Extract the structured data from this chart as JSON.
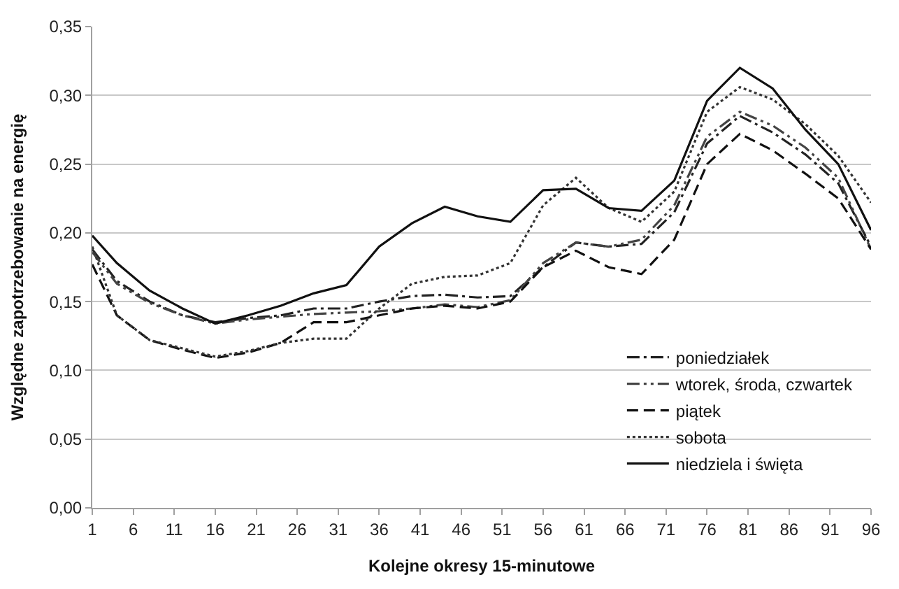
{
  "chart_data": {
    "type": "line",
    "xlabel": "Kolejne okresy 15-minutowe",
    "ylabel": "Względne zapotrzebowanie na energię",
    "x": [
      1,
      4,
      8,
      12,
      16,
      20,
      24,
      28,
      32,
      36,
      40,
      44,
      48,
      52,
      56,
      60,
      64,
      68,
      72,
      76,
      80,
      84,
      88,
      92,
      96
    ],
    "series": [
      {
        "name": "poniedziałek",
        "color": "#222222",
        "line_style": "dashdot",
        "values": [
          0.188,
          0.165,
          0.15,
          0.14,
          0.135,
          0.138,
          0.14,
          0.145,
          0.145,
          0.15,
          0.154,
          0.155,
          0.153,
          0.154,
          0.175,
          0.193,
          0.19,
          0.192,
          0.215,
          0.265,
          0.285,
          0.273,
          0.257,
          0.236,
          0.19
        ]
      },
      {
        "name": "wtorek, środa, czwartek",
        "color": "#444444",
        "line_style": "dashdotdot",
        "values": [
          0.186,
          0.163,
          0.149,
          0.14,
          0.134,
          0.137,
          0.139,
          0.141,
          0.142,
          0.143,
          0.145,
          0.148,
          0.146,
          0.151,
          0.178,
          0.193,
          0.19,
          0.195,
          0.22,
          0.27,
          0.288,
          0.278,
          0.262,
          0.24,
          0.188
        ]
      },
      {
        "name": "piątek",
        "color": "#111111",
        "line_style": "dashed",
        "values": [
          0.177,
          0.14,
          0.122,
          0.115,
          0.109,
          0.113,
          0.12,
          0.135,
          0.135,
          0.14,
          0.145,
          0.147,
          0.145,
          0.15,
          0.175,
          0.187,
          0.175,
          0.17,
          0.195,
          0.25,
          0.272,
          0.26,
          0.243,
          0.225,
          0.188
        ]
      },
      {
        "name": "sobota",
        "color": "#333333",
        "line_style": "dotted",
        "values": [
          0.19,
          0.14,
          0.122,
          0.116,
          0.11,
          0.114,
          0.12,
          0.123,
          0.123,
          0.145,
          0.163,
          0.168,
          0.169,
          0.178,
          0.22,
          0.24,
          0.218,
          0.208,
          0.23,
          0.288,
          0.306,
          0.297,
          0.279,
          0.256,
          0.222
        ]
      },
      {
        "name": "niedziela i święta",
        "color": "#111111",
        "line_style": "solid",
        "values": [
          0.198,
          0.178,
          0.158,
          0.145,
          0.134,
          0.14,
          0.147,
          0.156,
          0.162,
          0.19,
          0.207,
          0.219,
          0.212,
          0.208,
          0.231,
          0.232,
          0.218,
          0.216,
          0.238,
          0.296,
          0.32,
          0.305,
          0.275,
          0.25,
          0.202
        ]
      }
    ],
    "xlim": [
      1,
      96
    ],
    "xticks": [
      1,
      6,
      11,
      16,
      21,
      26,
      31,
      36,
      41,
      46,
      51,
      56,
      61,
      66,
      71,
      76,
      81,
      86,
      91,
      96
    ],
    "ylim": [
      0,
      0.35
    ],
    "yticks": [
      {
        "value": 0,
        "label": "0,00"
      },
      {
        "value": 0.05,
        "label": "0,05"
      },
      {
        "value": 0.1,
        "label": "0,10"
      },
      {
        "value": 0.15,
        "label": "0,15"
      },
      {
        "value": 0.2,
        "label": "0,20"
      },
      {
        "value": 0.25,
        "label": "0,25"
      },
      {
        "value": 0.3,
        "label": "0,30"
      },
      {
        "value": 0.35,
        "label": "0,35"
      }
    ],
    "grid": "y",
    "legend": "bottom right",
    "marker": "none"
  }
}
